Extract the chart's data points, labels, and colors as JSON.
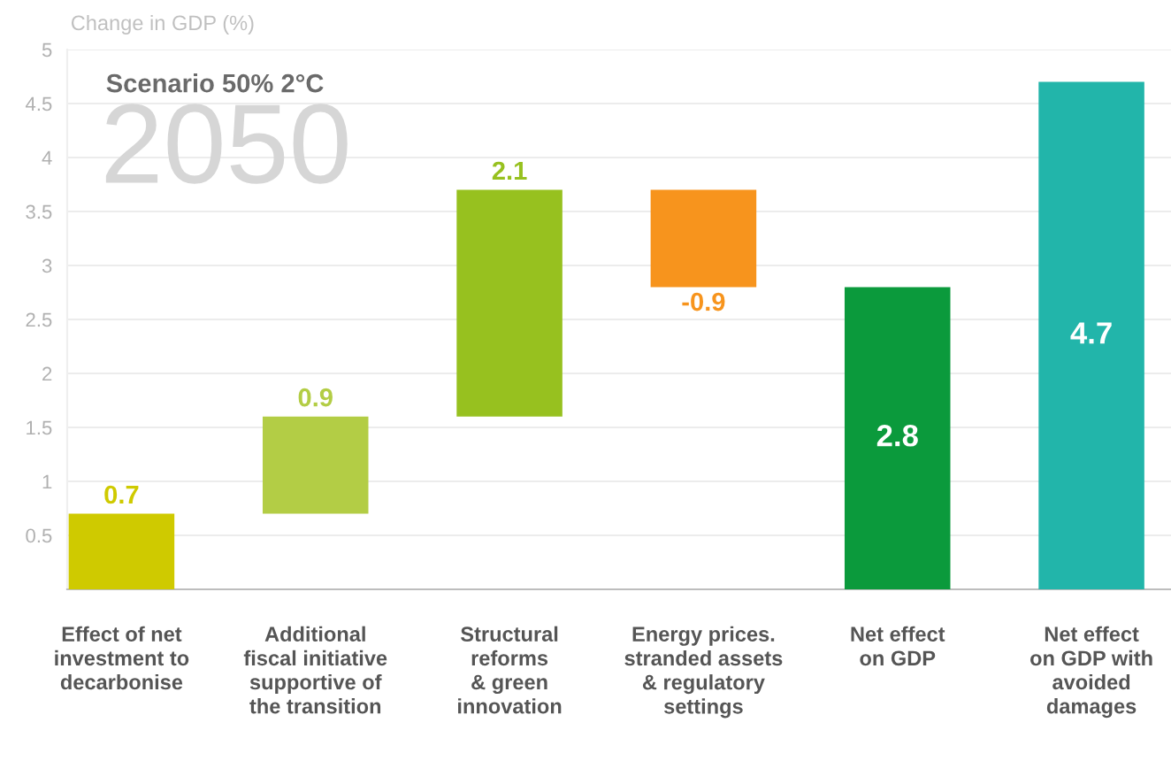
{
  "chart_data": {
    "type": "bar",
    "title": "Scenario 50% 2°C",
    "subtitle": "2050",
    "ylabel": "Change in GDP (%)",
    "categories": [
      "Effect of net\ninvestment to\ndecarbonise",
      "Additional\nfiscal initiative\nsupportive of\nthe transition",
      "Structural\nreforms\n& green\ninnovation",
      "Energy prices.\nstranded assets\n& regulatory\nsettings",
      "Net effect\non GDP",
      "Net effect\non GDP with\navoided\ndamages"
    ],
    "values": [
      0.7,
      0.9,
      2.1,
      -0.9,
      2.8,
      4.7
    ],
    "base": [
      0,
      0.7,
      1.6,
      3.7,
      null,
      null
    ],
    "colors": [
      "#cfca00",
      "#b3cd45",
      "#97c11f",
      "#f7941d",
      "#0b9a3c",
      "#22b5aa"
    ],
    "ylim": [
      0,
      5
    ],
    "yticks": [
      0.5,
      1,
      1.5,
      2,
      2.5,
      3,
      3.5,
      4,
      4.5,
      5
    ],
    "grid": "y",
    "data_labels": true
  }
}
